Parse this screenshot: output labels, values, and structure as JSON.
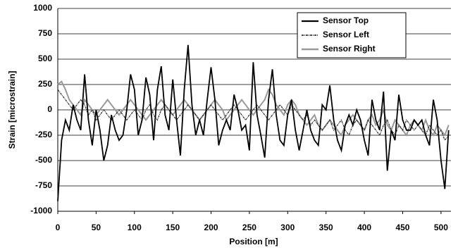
{
  "chart_data": {
    "type": "line",
    "x_label": "Position [m]",
    "y_label": "Strain [microstrain]",
    "xlim": [
      0,
      513
    ],
    "ylim": [
      -1000,
      1000
    ],
    "xticks": [
      0,
      50,
      100,
      150,
      200,
      250,
      300,
      350,
      400,
      450,
      500
    ],
    "yticks": [
      -1000,
      -750,
      -500,
      -250,
      0,
      250,
      500,
      750,
      1000
    ],
    "grid": true,
    "legend": "upper right",
    "x": [
      0,
      5,
      10,
      15,
      20,
      25,
      30,
      35,
      40,
      45,
      50,
      55,
      60,
      65,
      70,
      75,
      80,
      85,
      90,
      95,
      100,
      105,
      110,
      115,
      120,
      125,
      130,
      135,
      140,
      145,
      150,
      155,
      160,
      165,
      170,
      175,
      180,
      185,
      190,
      195,
      200,
      205,
      210,
      215,
      220,
      225,
      230,
      235,
      240,
      245,
      250,
      255,
      260,
      265,
      270,
      275,
      280,
      285,
      290,
      295,
      300,
      305,
      310,
      315,
      320,
      325,
      330,
      335,
      340,
      345,
      350,
      355,
      360,
      365,
      370,
      375,
      380,
      385,
      390,
      395,
      400,
      405,
      410,
      415,
      420,
      425,
      430,
      435,
      440,
      445,
      450,
      455,
      460,
      465,
      470,
      475,
      480,
      485,
      490,
      495,
      500,
      505,
      510
    ],
    "series": [
      {
        "name": "Sensor Top",
        "color": "#000000",
        "values": [
          -900,
          -300,
          -100,
          -200,
          50,
          -100,
          -200,
          350,
          -100,
          -350,
          0,
          -200,
          -500,
          -350,
          -50,
          -200,
          -300,
          -250,
          0,
          350,
          200,
          -250,
          -100,
          320,
          150,
          -300,
          200,
          430,
          -50,
          -200,
          300,
          -100,
          -450,
          200,
          640,
          50,
          -250,
          -100,
          -250,
          100,
          420,
          100,
          -350,
          -200,
          -100,
          -200,
          150,
          0,
          -200,
          -150,
          -400,
          470,
          -50,
          -250,
          -470,
          100,
          400,
          -50,
          -300,
          -350,
          -50,
          100,
          -200,
          -400,
          -200,
          0,
          -200,
          -300,
          -350,
          50,
          0,
          240,
          -100,
          -300,
          -400,
          -150,
          -50,
          -150,
          0,
          -100,
          -300,
          -450,
          100,
          -100,
          -200,
          180,
          -600,
          -200,
          -300,
          150,
          -100,
          -200,
          -200,
          -100,
          -150,
          -100,
          -250,
          -350,
          100,
          -100,
          -500,
          -780,
          -200
        ]
      },
      {
        "name": "Sensor Left",
        "color": "#333333",
        "values": [
          200,
          150,
          100,
          50,
          0,
          50,
          100,
          50,
          -50,
          0,
          -100,
          -50,
          0,
          -50,
          -100,
          -50,
          0,
          -50,
          -100,
          -50,
          0,
          -50,
          -100,
          0,
          50,
          -50,
          -100,
          0,
          50,
          0,
          -50,
          -100,
          -50,
          0,
          50,
          0,
          -50,
          -100,
          -50,
          0,
          50,
          0,
          -50,
          -100,
          -50,
          0,
          50,
          0,
          -50,
          -100,
          -50,
          0,
          50,
          0,
          -50,
          -100,
          -50,
          0,
          50,
          0,
          -50,
          50,
          0,
          -50,
          -100,
          -50,
          -150,
          -100,
          -150,
          -200,
          -150,
          -100,
          -200,
          -150,
          -100,
          -200,
          -250,
          -150,
          -100,
          -150,
          -200,
          -100,
          -150,
          -200,
          -250,
          -150,
          -100,
          -200,
          -250,
          -150,
          -200,
          -100,
          -150,
          -200,
          -150,
          -200,
          -250,
          -150,
          -200,
          -250,
          -200,
          -300,
          -250
        ]
      },
      {
        "name": "Sensor Right",
        "color": "#999999",
        "values": [
          250,
          280,
          200,
          100,
          50,
          0,
          -50,
          100,
          50,
          0,
          -50,
          0,
          50,
          100,
          50,
          0,
          -50,
          0,
          50,
          100,
          50,
          0,
          -50,
          -100,
          -50,
          0,
          50,
          100,
          50,
          0,
          -50,
          0,
          50,
          100,
          50,
          0,
          -50,
          -100,
          -50,
          0,
          50,
          100,
          50,
          0,
          -100,
          -50,
          0,
          50,
          100,
          50,
          0,
          -50,
          0,
          50,
          100,
          200,
          150,
          50,
          0,
          -50,
          50,
          100,
          50,
          -50,
          -100,
          -150,
          -100,
          -50,
          -150,
          -200,
          -150,
          -100,
          -150,
          -200,
          -250,
          -150,
          -100,
          -50,
          -100,
          -150,
          -200,
          -100,
          -50,
          -150,
          -100,
          0,
          -150,
          -200,
          -100,
          -150,
          -200,
          -250,
          -150,
          -100,
          -150,
          -200,
          -100,
          -200,
          -250,
          -150,
          -200,
          -250,
          -150
        ]
      }
    ]
  }
}
